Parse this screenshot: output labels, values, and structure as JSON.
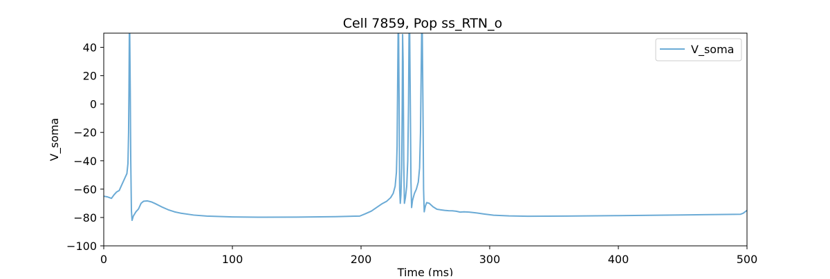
{
  "chart_data": {
    "type": "line",
    "title": "Cell 7859, Pop ss_RTN_o",
    "xlabel": "Time (ms)",
    "ylabel": "V_soma",
    "xlim": [
      0,
      500
    ],
    "ylim": [
      -100,
      50
    ],
    "xticks": [
      0,
      100,
      200,
      300,
      400,
      500
    ],
    "yticks": [
      -100,
      -80,
      -60,
      -40,
      -20,
      0,
      20,
      40
    ],
    "grid": false,
    "legend_position": "top-right",
    "series": [
      {
        "name": "V_soma",
        "color": "#6aaad5",
        "points": [
          [
            0,
            -65
          ],
          [
            3,
            -65.5
          ],
          [
            6,
            -66.5
          ],
          [
            8,
            -64
          ],
          [
            10,
            -62
          ],
          [
            12,
            -61
          ],
          [
            14,
            -57
          ],
          [
            16,
            -53
          ],
          [
            18,
            -49
          ],
          [
            18.8,
            -42
          ],
          [
            19.3,
            -20
          ],
          [
            19.6,
            10
          ],
          [
            19.9,
            50
          ],
          [
            20.2,
            50
          ],
          [
            20.6,
            10
          ],
          [
            21,
            -40
          ],
          [
            21.5,
            -75
          ],
          [
            22,
            -82
          ],
          [
            23,
            -79
          ],
          [
            25,
            -76
          ],
          [
            27,
            -74
          ],
          [
            29,
            -70
          ],
          [
            31,
            -68.5
          ],
          [
            34,
            -68.3
          ],
          [
            37,
            -69
          ],
          [
            40,
            -70.2
          ],
          [
            45,
            -72.5
          ],
          [
            50,
            -74.5
          ],
          [
            55,
            -76
          ],
          [
            60,
            -77
          ],
          [
            70,
            -78.3
          ],
          [
            80,
            -79
          ],
          [
            100,
            -79.6
          ],
          [
            120,
            -79.8
          ],
          [
            150,
            -79.7
          ],
          [
            180,
            -79.4
          ],
          [
            199,
            -79
          ],
          [
            203,
            -77.5
          ],
          [
            208,
            -75.5
          ],
          [
            212,
            -73
          ],
          [
            216,
            -70.5
          ],
          [
            220,
            -68.5
          ],
          [
            223,
            -66
          ],
          [
            225,
            -63
          ],
          [
            226.5,
            -58
          ],
          [
            227.5,
            -48
          ],
          [
            228,
            -30
          ],
          [
            228.4,
            10
          ],
          [
            228.8,
            50
          ],
          [
            229.2,
            50
          ],
          [
            229.6,
            0
          ],
          [
            230,
            -60
          ],
          [
            230.5,
            -70
          ],
          [
            231,
            -64
          ],
          [
            231.6,
            -45
          ],
          [
            232,
            0
          ],
          [
            232.3,
            49
          ],
          [
            232.7,
            30
          ],
          [
            233.2,
            -40
          ],
          [
            233.7,
            -70
          ],
          [
            234.5,
            -66
          ],
          [
            235.5,
            -58
          ],
          [
            236.3,
            -40
          ],
          [
            236.9,
            0
          ],
          [
            237.3,
            50
          ],
          [
            237.8,
            50
          ],
          [
            238.3,
            0
          ],
          [
            238.8,
            -55
          ],
          [
            239.3,
            -73
          ],
          [
            240,
            -68
          ],
          [
            241.5,
            -63
          ],
          [
            243,
            -60
          ],
          [
            244.5,
            -55
          ],
          [
            245.5,
            -45
          ],
          [
            246.2,
            -20
          ],
          [
            246.7,
            20
          ],
          [
            247.1,
            50
          ],
          [
            247.6,
            50
          ],
          [
            248.1,
            0
          ],
          [
            248.6,
            -60
          ],
          [
            249.1,
            -76
          ],
          [
            250,
            -72
          ],
          [
            251,
            -69.5
          ],
          [
            253,
            -70
          ],
          [
            256,
            -72.5
          ],
          [
            259,
            -74.2
          ],
          [
            262,
            -74.6
          ],
          [
            265,
            -75
          ],
          [
            268,
            -75.2
          ],
          [
            271,
            -75.3
          ],
          [
            274,
            -75.6
          ],
          [
            277,
            -76.2
          ],
          [
            280,
            -76
          ],
          [
            284,
            -76.2
          ],
          [
            290,
            -76.8
          ],
          [
            296,
            -77.6
          ],
          [
            303,
            -78.4
          ],
          [
            315,
            -78.9
          ],
          [
            330,
            -79.1
          ],
          [
            360,
            -79
          ],
          [
            400,
            -78.7
          ],
          [
            450,
            -78.2
          ],
          [
            490,
            -77.8
          ],
          [
            495,
            -77.7
          ],
          [
            497,
            -77
          ],
          [
            500,
            -75
          ]
        ]
      }
    ]
  }
}
